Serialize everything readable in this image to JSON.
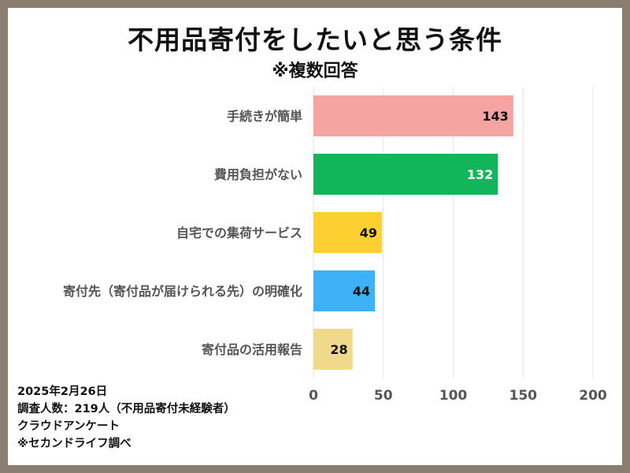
{
  "chart_data": {
    "type": "bar",
    "orientation": "horizontal",
    "title": "不用品寄付をしたいと思う条件",
    "subtitle": "※複数回答",
    "categories": [
      "手続きが簡単",
      "費用負担がない",
      "自宅での集荷サービス",
      "寄付先（寄付品が届けられる先）の明確化",
      "寄付品の活用報告"
    ],
    "values": [
      143,
      132,
      49,
      44,
      28
    ],
    "colors": [
      "#f6a4a2",
      "#13b55a",
      "#fbd030",
      "#3db2f7",
      "#f0d98a"
    ],
    "value_label_colors": [
      "#111111",
      "#ffffff",
      "#111111",
      "#111111",
      "#111111"
    ],
    "xlim": [
      0,
      200
    ],
    "xticks": [
      0,
      50,
      100,
      150,
      200
    ],
    "grid": true
  },
  "footnotes": [
    "2025年2月26日",
    "調査人数：219人（不用品寄付未経験者）",
    "クラウドアンケート",
    "※セカンドライフ調べ"
  ]
}
